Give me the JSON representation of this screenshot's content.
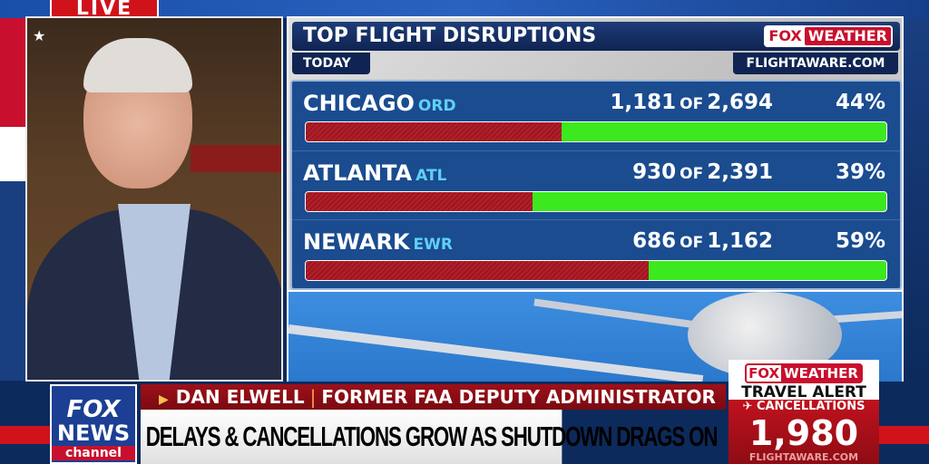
{
  "live_badge": "LIVE",
  "graphic": {
    "title": "TOP FLIGHT DISRUPTIONS",
    "brand": {
      "fox": "FOX",
      "weather": "WEATHER"
    },
    "period": "TODAY",
    "source": "FLIGHTAWARE.COM",
    "of_label": "OF",
    "rows": [
      {
        "city": "CHICAGO",
        "code": "ORD",
        "disrupted": "1,181",
        "total": "2,694",
        "percent": "44%",
        "fraction": 0.44
      },
      {
        "city": "ATLANTA",
        "code": "ATL",
        "disrupted": "930",
        "total": "2,391",
        "percent": "39%",
        "fraction": 0.39
      },
      {
        "city": "NEWARK",
        "code": "EWR",
        "disrupted": "686",
        "total": "1,162",
        "percent": "59%",
        "fraction": 0.59
      }
    ],
    "colors": {
      "disrupted": "#9c1620",
      "remaining": "#3ce81e",
      "panel": "#1a4c8f"
    }
  },
  "lower_third": {
    "network_logo": {
      "line1": "FOX",
      "line2": "NEWS",
      "line3": "channel"
    },
    "name": "DAN ELWELL",
    "title": "FORMER FAA DEPUTY ADMINISTRATOR",
    "headline": "DELAYS & CANCELLATIONS GROW AS SHUTDOWN DRAGS ON"
  },
  "travel_alert": {
    "brand": {
      "fox": "FOX",
      "weather": "WEATHER"
    },
    "heading": "TRAVEL ALERT",
    "label": "CANCELLATIONS",
    "count": "1,980",
    "source": "FLIGHTAWARE.COM"
  }
}
